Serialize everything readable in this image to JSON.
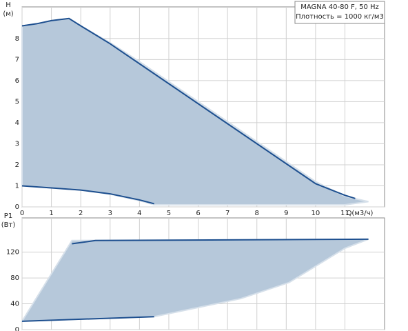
{
  "chart_data": [
    {
      "type": "line",
      "ylabel": "H",
      "yunit": "(м)",
      "xlabel": "Q(м3/ч)",
      "notes": [
        "MAGNA 40-80 F, 50 Hz",
        "Плотность = 1000 кг/м3"
      ],
      "xlim": [
        0,
        12.35
      ],
      "xticks": [
        0,
        1,
        2,
        3,
        4,
        5,
        6,
        7,
        8,
        9,
        10,
        11
      ],
      "ylim": [
        0,
        9.5
      ],
      "yticks": [
        0,
        1,
        2,
        3,
        4,
        5,
        6,
        7,
        8
      ],
      "grid": true,
      "series": [
        {
          "style": "area",
          "color": "#b6c8da",
          "x": [
            0,
            0.5,
            1,
            1.6,
            2,
            3,
            4,
            5,
            6,
            7,
            8,
            9,
            10,
            11,
            11.8,
            11,
            4.5,
            4,
            3,
            2,
            1,
            0
          ],
          "values": [
            8.6,
            8.7,
            8.85,
            8.95,
            8.6,
            7.8,
            6.9,
            5.95,
            5.0,
            4.05,
            3.1,
            2.15,
            1.2,
            0.5,
            0.25,
            0.1,
            0.1,
            0.3,
            0.6,
            0.8,
            0.9,
            1.0
          ]
        },
        {
          "style": "line",
          "color": "#1d4f8f",
          "x": [
            0,
            0.5,
            1,
            1.6,
            2,
            3,
            4,
            5,
            6,
            7,
            8,
            9,
            10,
            11,
            11.35
          ],
          "values": [
            8.6,
            8.7,
            8.85,
            8.95,
            8.6,
            7.75,
            6.8,
            5.85,
            4.9,
            3.95,
            3.0,
            2.05,
            1.1,
            0.55,
            0.4
          ]
        },
        {
          "style": "line",
          "color": "#1d4f8f",
          "x": [
            0,
            1,
            2,
            3,
            4,
            4.5
          ],
          "values": [
            1.0,
            0.9,
            0.8,
            0.62,
            0.33,
            0.15
          ]
        }
      ]
    },
    {
      "type": "line",
      "ylabel": "P1",
      "yunit": "(Вт)",
      "xlim": [
        0,
        12.35
      ],
      "ylim": [
        0,
        173
      ],
      "yticks": [
        0,
        40,
        80,
        120
      ],
      "grid": true,
      "series": [
        {
          "style": "area",
          "color": "#b6c8da",
          "x": [
            0,
            1.7,
            11.8,
            11,
            9.1,
            7.45,
            4.5,
            0
          ],
          "values": [
            13,
            138,
            140,
            126,
            73,
            48,
            20,
            13
          ]
        },
        {
          "style": "line",
          "color": "#1d4f8f",
          "x": [
            1.7,
            2.5,
            11.8
          ],
          "values": [
            133,
            138,
            140
          ]
        },
        {
          "style": "line",
          "color": "#1d4f8f",
          "x": [
            0,
            4.5
          ],
          "values": [
            13,
            20
          ]
        }
      ]
    }
  ]
}
